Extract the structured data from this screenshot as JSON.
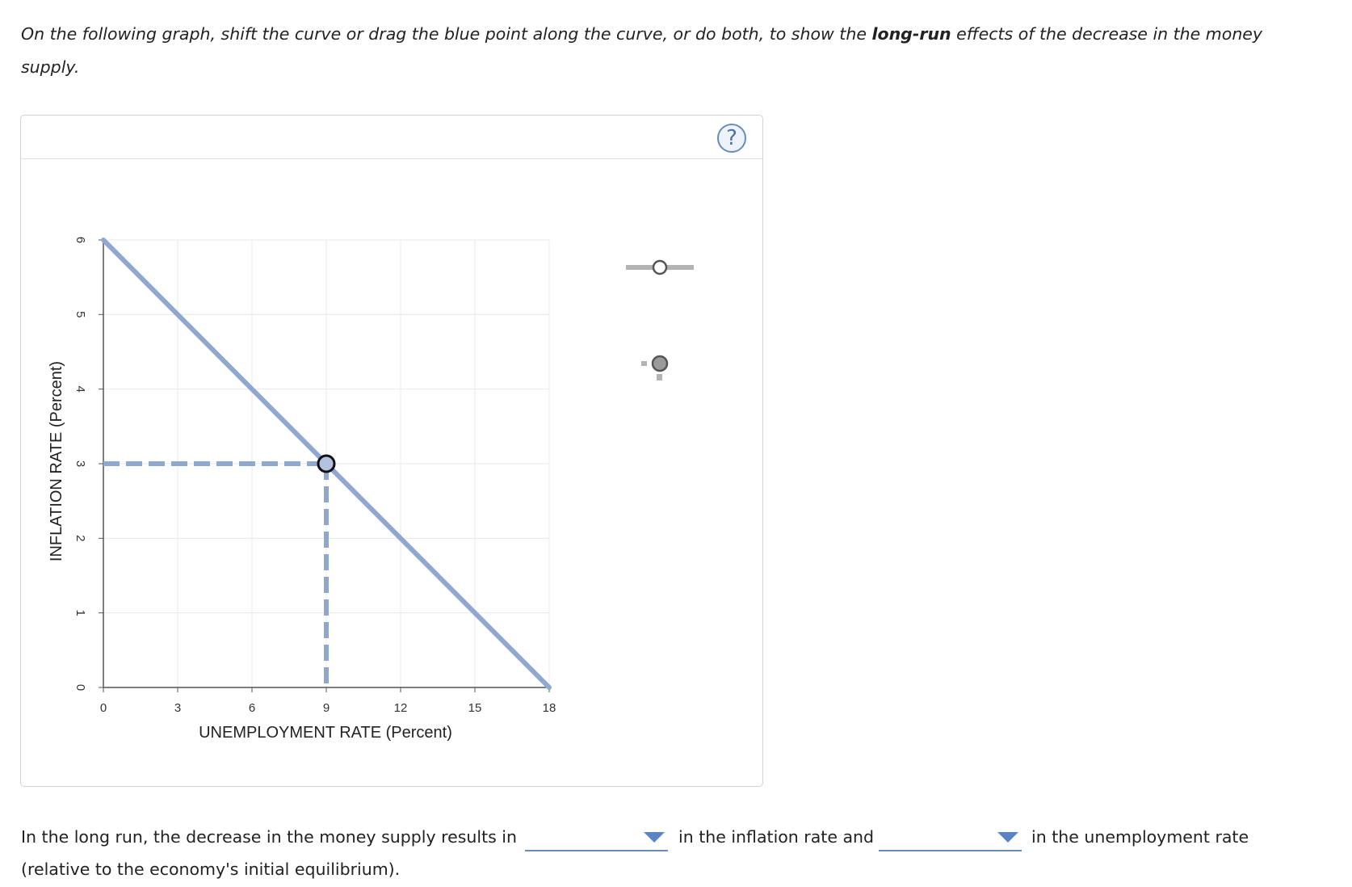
{
  "instructions": {
    "part1": "On the following graph, shift the curve or drag the blue point along the curve, or do both, to show the ",
    "bold": "long-run",
    "part2": " effects of the decrease in the money supply."
  },
  "help_icon": "?",
  "chart_data": {
    "type": "line",
    "xlabel": "UNEMPLOYMENT RATE (Percent)",
    "ylabel": "INFLATION RATE (Percent)",
    "xlim": [
      0,
      18
    ],
    "ylim": [
      0,
      6
    ],
    "xticks": [
      "0",
      "3",
      "6",
      "9",
      "12",
      "15",
      "18"
    ],
    "yticks": [
      "0",
      "1",
      "2",
      "3",
      "4",
      "5",
      "6"
    ],
    "grid": true,
    "curve": {
      "x": [
        0,
        18
      ],
      "y": [
        6,
        0
      ]
    },
    "point": {
      "x": 9,
      "y": 3
    },
    "colors": {
      "curve": "#90a8d0",
      "grid": "#e8e8e8",
      "axis": "#555555"
    }
  },
  "tools": [
    {
      "icon": "curve-drag-tool-icon"
    },
    {
      "icon": "point-drag-tool-icon"
    }
  ],
  "answer": {
    "text1": "In the long run, the decrease in the money supply results in",
    "text2": "in the inflation rate and",
    "text3": "in the unemployment rate",
    "text4": "(relative to the economy's initial equilibrium).",
    "dropdown1_value": "",
    "dropdown2_value": ""
  }
}
